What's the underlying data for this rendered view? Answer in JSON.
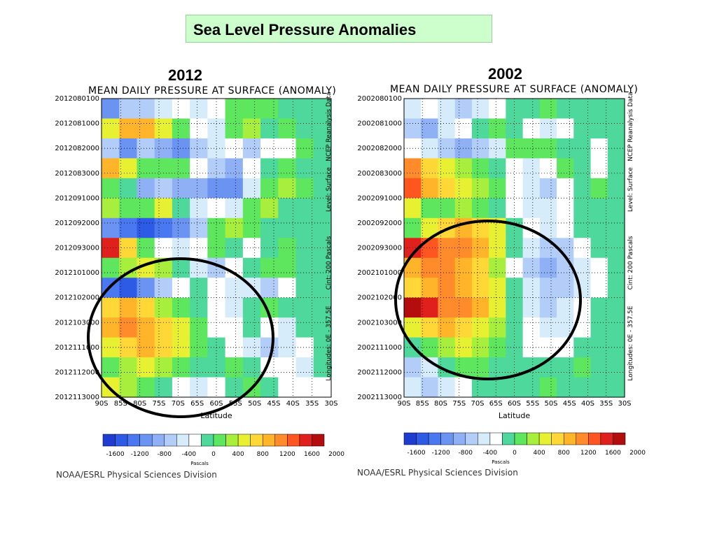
{
  "header": {
    "title": "Sea Level Pressure Anomalies"
  },
  "colors": {
    "levels": [
      "#1e3ccf",
      "#2d5be6",
      "#4a78f0",
      "#6b93f2",
      "#8fb0f5",
      "#b2cdf8",
      "#d6ecfb",
      "#ffffff",
      "#4ed89c",
      "#5ee65e",
      "#a8ee3c",
      "#e8f032",
      "#ffd838",
      "#ffb429",
      "#ff8b2a",
      "#ff5520",
      "#e0201c",
      "#b40d0d"
    ],
    "circle": "#000000"
  },
  "chart_data": [
    {
      "type": "heatmap",
      "year_label": "2012",
      "title": "MEAN DAILY PRESSURE AT SURFACE (ANOMALY)",
      "xlabel": "Latitude",
      "x_ticks": [
        "90S",
        "85S",
        "80S",
        "75S",
        "70S",
        "65S",
        "60S",
        "55S",
        "50S",
        "45S",
        "40S",
        "35S",
        "30S"
      ],
      "y_ticks": [
        "2012080100",
        "2012081000",
        "2012082000",
        "2012083000",
        "2012091000",
        "2012092000",
        "2012093000",
        "2012101000",
        "2012102000",
        "2012103000",
        "2012111000",
        "2012112000",
        "2012113000"
      ],
      "side_labels": [
        "NCEP Reanalysis Data",
        "Level: Surface",
        "Cint: 200 Pascals",
        "Longitudes: 0E - 357.5E"
      ],
      "colorbar": {
        "ticks": [
          "-1600",
          "-1200",
          "-800",
          "-400",
          "0",
          "400",
          "800",
          "1200",
          "1600",
          "2000"
        ],
        "units": "Pascals"
      },
      "credit": "NOAA/ESRL Physical Sciences Division",
      "grid": true,
      "values": [
        [
          -800,
          -400,
          -400,
          -200,
          0,
          -200,
          0,
          400,
          400,
          400,
          200,
          200,
          200
        ],
        [
          800,
          1200,
          1200,
          800,
          400,
          0,
          -200,
          400,
          600,
          200,
          400,
          200,
          200
        ],
        [
          -400,
          -800,
          -400,
          -600,
          -800,
          -400,
          -200,
          0,
          -400,
          0,
          0,
          400,
          200
        ],
        [
          1200,
          800,
          400,
          400,
          400,
          0,
          -400,
          -600,
          0,
          200,
          400,
          200,
          200
        ],
        [
          400,
          200,
          -600,
          -400,
          -600,
          -600,
          -800,
          -800,
          -200,
          400,
          600,
          400,
          200
        ],
        [
          600,
          400,
          400,
          800,
          200,
          -200,
          0,
          -200,
          400,
          600,
          200,
          200,
          200
        ],
        [
          -800,
          -1000,
          -1200,
          -1000,
          -800,
          -400,
          400,
          600,
          400,
          200,
          200,
          200,
          200
        ],
        [
          1800,
          1000,
          400,
          0,
          -200,
          0,
          400,
          200,
          0,
          200,
          400,
          200,
          200
        ],
        [
          400,
          600,
          800,
          600,
          200,
          -200,
          -400,
          0,
          200,
          400,
          400,
          200,
          200
        ],
        [
          -1000,
          -1200,
          -800,
          -400,
          0,
          200,
          0,
          -200,
          -200,
          -400,
          0,
          200,
          200
        ],
        [
          1000,
          1200,
          1000,
          600,
          400,
          200,
          0,
          -200,
          200,
          400,
          200,
          200,
          200
        ],
        [
          1200,
          1400,
          1200,
          1000,
          800,
          400,
          0,
          0,
          200,
          0,
          -200,
          200,
          200
        ],
        [
          800,
          1000,
          1200,
          1000,
          800,
          400,
          200,
          0,
          -200,
          -400,
          -200,
          0,
          200
        ],
        [
          400,
          600,
          800,
          600,
          400,
          200,
          200,
          400,
          200,
          0,
          0,
          -200,
          200
        ],
        [
          800,
          600,
          400,
          200,
          0,
          -200,
          0,
          200,
          400,
          200,
          0,
          0,
          0
        ]
      ],
      "annotation": "ellipse"
    },
    {
      "type": "heatmap",
      "year_label": "2002",
      "title": "MEAN DAILY PRESSURE AT SURFACE (ANOMALY)",
      "xlabel": "Latitude",
      "x_ticks": [
        "90S",
        "85S",
        "80S",
        "75S",
        "70S",
        "65S",
        "60S",
        "55S",
        "50S",
        "45S",
        "40S",
        "35S",
        "30S"
      ],
      "y_ticks": [
        "2002080100",
        "2002081000",
        "2002082000",
        "2002083000",
        "2002091000",
        "2002092000",
        "2002093000",
        "2002101000",
        "2002102000",
        "2002103000",
        "2002111000",
        "2002112000",
        "2002113000"
      ],
      "side_labels": [
        "NCEP Reanalysis Data",
        "Level: Surface",
        "Cint: 200 Pascals",
        "Longitudes: 0E - 357.5E"
      ],
      "colorbar": {
        "ticks": [
          "-1600",
          "-1200",
          "-800",
          "-400",
          "0",
          "400",
          "800",
          "1200",
          "1600",
          "2000"
        ],
        "units": "Pascals"
      },
      "credit": "NOAA/ESRL Physical Sciences Division",
      "grid": true,
      "values": [
        [
          -200,
          0,
          -200,
          -400,
          -200,
          0,
          200,
          200,
          400,
          200,
          200,
          200,
          200
        ],
        [
          -400,
          -600,
          -200,
          0,
          200,
          400,
          200,
          0,
          -200,
          0,
          200,
          200,
          200
        ],
        [
          0,
          -200,
          -400,
          -600,
          -400,
          -200,
          400,
          400,
          400,
          200,
          200,
          0,
          200
        ],
        [
          1400,
          1000,
          800,
          600,
          400,
          200,
          0,
          -200,
          0,
          400,
          200,
          0,
          200
        ],
        [
          1600,
          1200,
          1000,
          800,
          600,
          400,
          0,
          -200,
          -400,
          0,
          200,
          400,
          200
        ],
        [
          800,
          400,
          400,
          600,
          400,
          200,
          0,
          -200,
          -200,
          0,
          200,
          200,
          200
        ],
        [
          400,
          800,
          1000,
          1200,
          1000,
          800,
          200,
          0,
          -200,
          0,
          200,
          200,
          200
        ],
        [
          1800,
          1600,
          1400,
          1400,
          1200,
          800,
          200,
          -200,
          -400,
          -400,
          0,
          200,
          200
        ],
        [
          1200,
          1400,
          1400,
          1200,
          1000,
          600,
          0,
          -400,
          -600,
          -400,
          -200,
          0,
          200
        ],
        [
          1000,
          1200,
          1400,
          1200,
          1000,
          800,
          200,
          -200,
          -400,
          -400,
          -200,
          0,
          200
        ],
        [
          2000,
          1800,
          1400,
          1400,
          1200,
          800,
          200,
          -200,
          -400,
          -200,
          0,
          200,
          200
        ],
        [
          800,
          1000,
          1200,
          1000,
          800,
          600,
          200,
          0,
          -200,
          -200,
          0,
          200,
          200
        ],
        [
          200,
          400,
          600,
          800,
          600,
          400,
          200,
          0,
          0,
          0,
          200,
          200,
          200
        ],
        [
          -400,
          -200,
          200,
          400,
          400,
          200,
          200,
          200,
          200,
          200,
          400,
          200,
          200
        ],
        [
          -200,
          -400,
          -200,
          0,
          200,
          200,
          200,
          200,
          400,
          200,
          200,
          200,
          200
        ]
      ],
      "annotation": "ellipse"
    }
  ]
}
